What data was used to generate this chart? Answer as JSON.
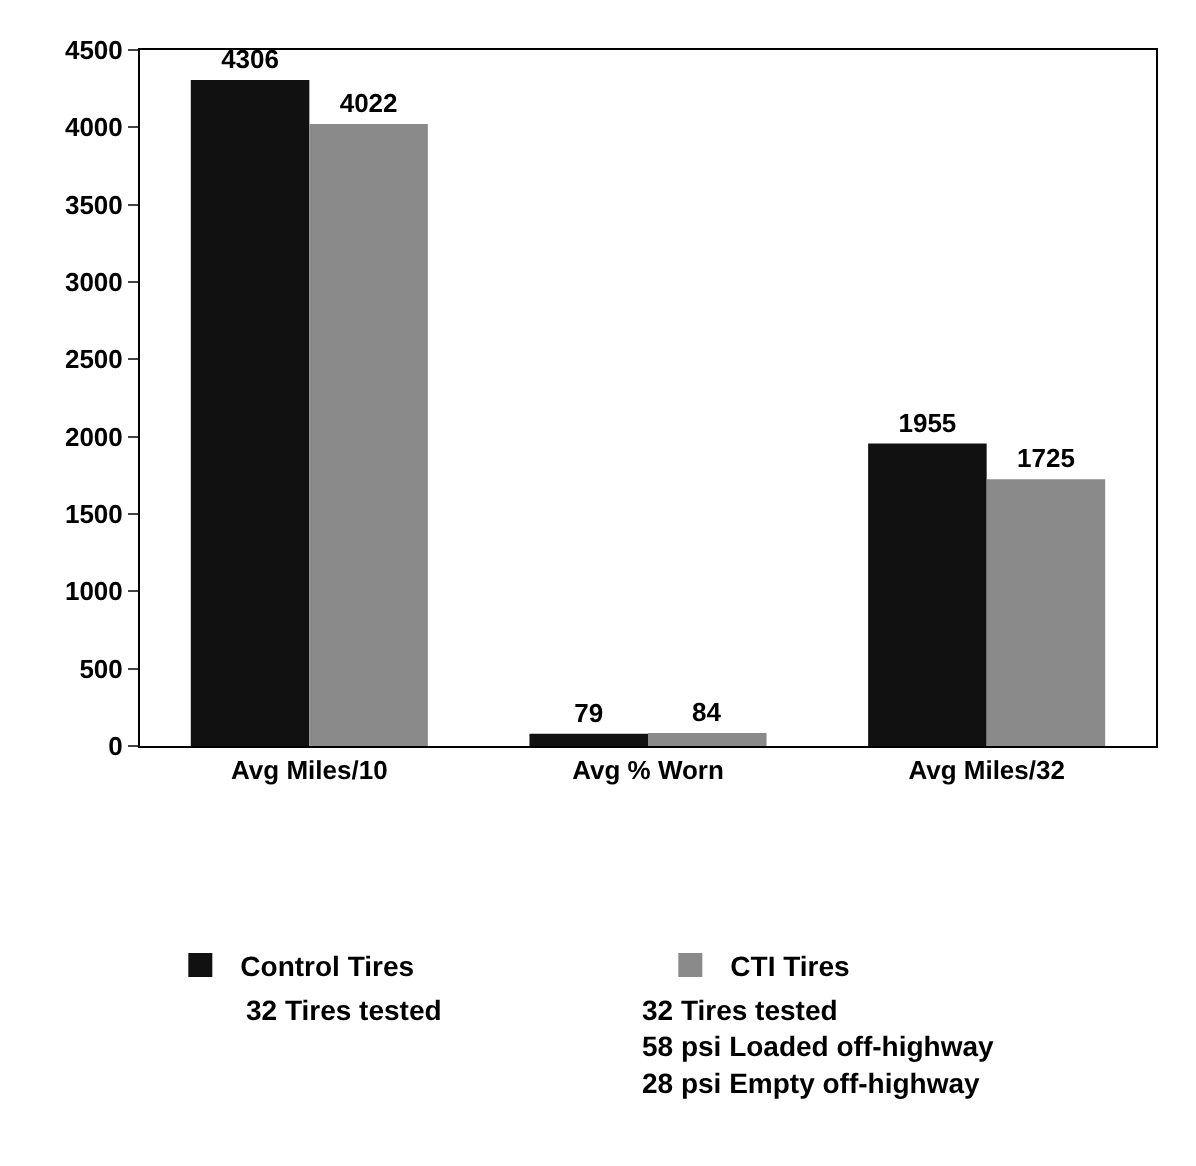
{
  "chart_data": {
    "type": "bar",
    "categories": [
      "Avg Miles/10",
      "Avg % Worn",
      "Avg Miles/32"
    ],
    "series": [
      {
        "name": "Control Tires",
        "color": "#111111",
        "values": [
          4306,
          79,
          1955
        ]
      },
      {
        "name": "CTI Tires",
        "color": "#8a8a8a",
        "values": [
          4022,
          84,
          1725
        ]
      }
    ],
    "ylim": [
      0,
      4500
    ],
    "yticks": [
      0,
      500,
      1000,
      1500,
      2000,
      2500,
      3000,
      3500,
      4000,
      4500
    ],
    "grid": false,
    "legend": "bottom",
    "data_labels": true,
    "annotations": [
      "32 Tires tested",
      "32 Tires tested\n58 psi Loaded off-highway\n28 psi Empty off-highway"
    ]
  }
}
